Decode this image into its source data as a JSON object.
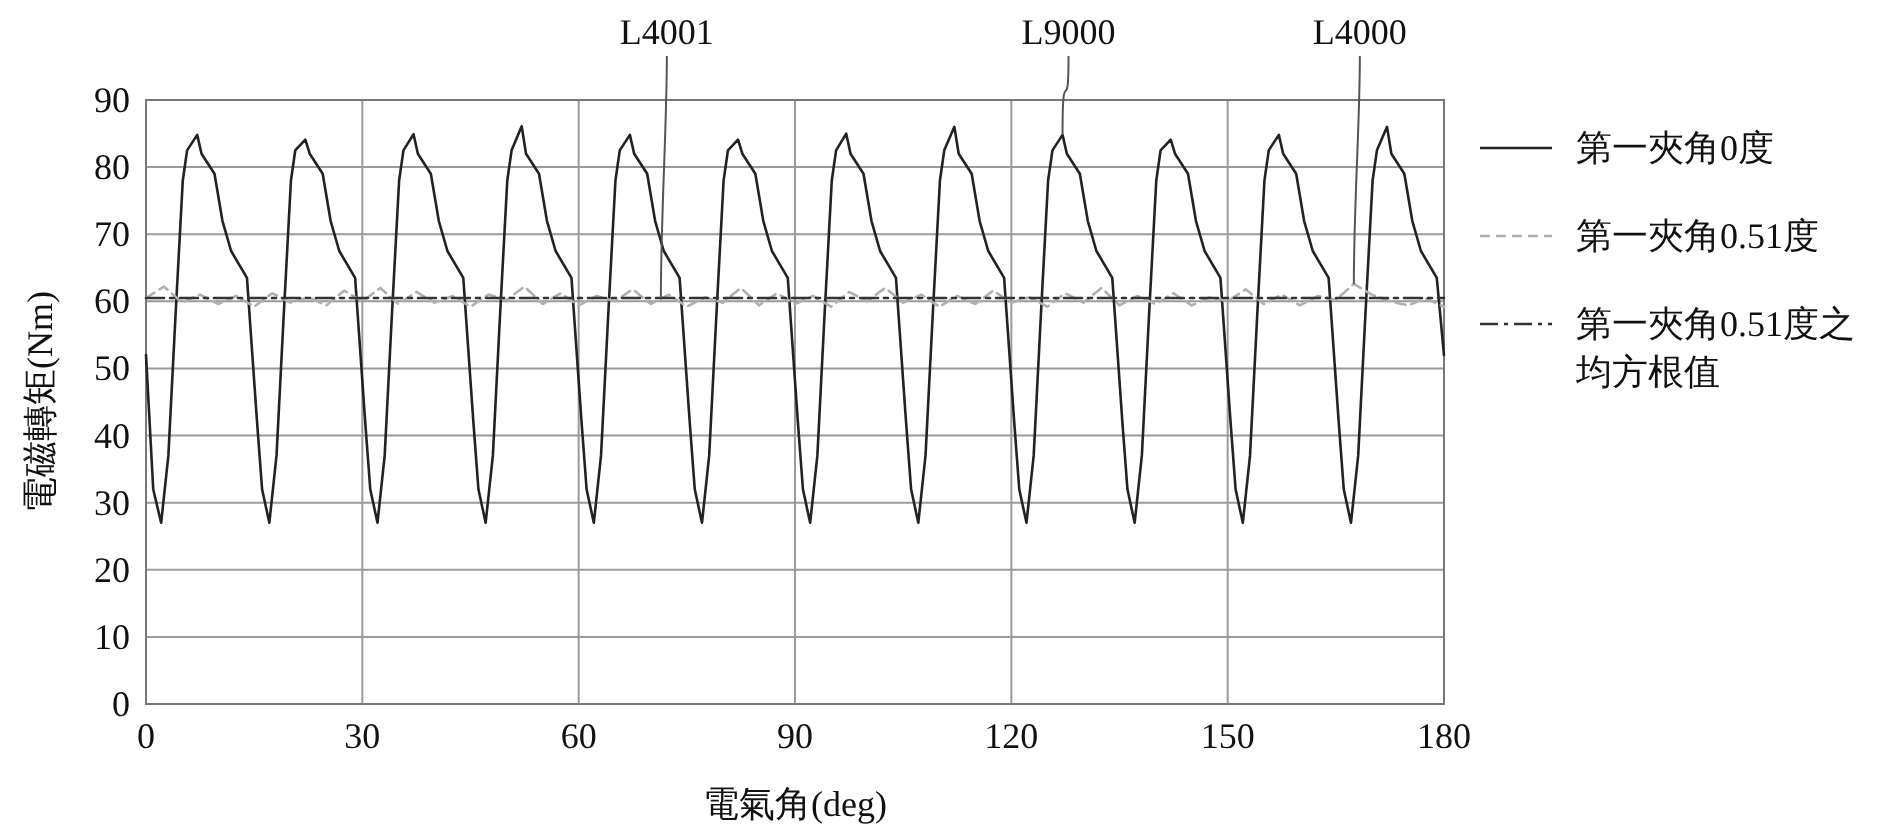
{
  "chart_data": {
    "type": "line",
    "xlabel": "電氣角(deg)",
    "ylabel": "電磁轉矩(Nm)",
    "xlim": [
      0,
      180
    ],
    "ylim": [
      0,
      90
    ],
    "xticks": [
      0,
      30,
      60,
      90,
      120,
      150,
      180
    ],
    "yticks": [
      0,
      10,
      20,
      30,
      40,
      50,
      60,
      70,
      80,
      90
    ],
    "grid": true,
    "legend": "right",
    "series": [
      {
        "name": "第一夾角0度",
        "color": "#222222",
        "line_style": "solid",
        "x": [
          0,
          1.0,
          2.1,
          3.1,
          4.1,
          5.1,
          5.7,
          7.1,
          7.7,
          9.5,
          10.6,
          11.8,
          14.0,
          15.4,
          16.1,
          17.1,
          18.1,
          19.1,
          20.1,
          20.7,
          22.1,
          22.7,
          24.5,
          25.6,
          26.8,
          29.0,
          30.4,
          31.1,
          32.1,
          33.1,
          34.1,
          35.1,
          35.7,
          37.1,
          37.7,
          39.5,
          40.6,
          41.8,
          44.0,
          45.4,
          46.1,
          47.1,
          48.1,
          49.1,
          50.1,
          50.7,
          52.1,
          52.7,
          54.5,
          55.6,
          56.8,
          59.0,
          60.4,
          61.1,
          62.1,
          63.1,
          64.1,
          65.1,
          65.7,
          67.1,
          67.7,
          69.5,
          70.6,
          71.8,
          74.0,
          75.4,
          76.1,
          77.1,
          78.1,
          79.1,
          80.1,
          80.7,
          82.1,
          82.7,
          84.5,
          85.6,
          86.8,
          89.0,
          90.4,
          91.1,
          92.1,
          93.1,
          94.1,
          95.1,
          95.7,
          97.1,
          97.7,
          99.5,
          100.6,
          101.8,
          104.0,
          105.4,
          106.1,
          107.1,
          108.1,
          109.1,
          110.1,
          110.7,
          112.1,
          112.7,
          114.5,
          115.6,
          116.8,
          119.0,
          120.4,
          121.1,
          122.1,
          123.1,
          124.1,
          125.1,
          125.7,
          127.1,
          127.7,
          129.5,
          130.6,
          131.8,
          134.0,
          135.4,
          136.1,
          137.1,
          138.1,
          139.1,
          140.1,
          140.7,
          142.1,
          142.7,
          144.5,
          145.6,
          146.8,
          149.0,
          150.4,
          151.1,
          152.1,
          153.1,
          154.1,
          155.1,
          155.7,
          157.1,
          157.7,
          159.5,
          160.6,
          161.8,
          164.0,
          165.4,
          166.1,
          167.1,
          168.1,
          169.1,
          170.1,
          170.7,
          172.1,
          172.7,
          174.5,
          175.6,
          176.8,
          179.0,
          180
        ],
        "values": [
          52,
          32,
          27,
          37,
          58,
          78,
          82.5,
          84.8,
          82,
          79,
          72,
          67.5,
          63.5,
          42,
          32,
          27,
          37,
          58,
          78,
          82.5,
          84.1,
          82,
          79,
          72,
          67.5,
          63.5,
          42,
          32,
          27,
          37,
          58,
          78,
          82.5,
          84.9,
          82,
          79,
          72,
          67.5,
          63.5,
          42,
          32,
          27,
          37,
          58,
          78,
          82.5,
          86.1,
          82,
          79,
          72,
          67.5,
          63.5,
          42,
          32,
          27,
          37,
          58,
          78,
          82.5,
          84.8,
          82,
          79,
          72,
          67.5,
          63.5,
          42,
          32,
          27,
          37,
          58,
          78,
          82.5,
          84.1,
          82,
          79,
          72,
          67.5,
          63.5,
          42,
          32,
          27,
          37,
          58,
          78,
          82.5,
          85,
          82,
          79,
          72,
          67.5,
          63.5,
          42,
          32,
          27,
          37,
          58,
          78,
          82.5,
          86,
          82,
          79,
          72,
          67.5,
          63.5,
          42,
          32,
          27,
          37,
          58,
          78,
          82.5,
          84.8,
          82,
          79,
          72,
          67.5,
          63.5,
          42,
          32,
          27,
          37,
          58,
          78,
          82.5,
          84.1,
          82,
          79,
          72,
          67.5,
          63.5,
          42,
          32,
          27,
          37,
          58,
          78,
          82.5,
          84.8,
          82,
          79,
          72,
          67.5,
          63.5,
          42,
          32,
          27,
          37,
          58,
          78,
          82.5,
          86,
          82,
          79,
          72,
          67.5,
          63.5,
          52
        ]
      },
      {
        "name": "第一夾角0.51度",
        "color": "#b0b0b0",
        "line_style": "dashed",
        "x": [
          0,
          2.5,
          5,
          7.5,
          10,
          12.5,
          15,
          17.5,
          20,
          22.5,
          25,
          27.5,
          30,
          32.5,
          35,
          37.5,
          40,
          42.5,
          45,
          47.5,
          50,
          52.5,
          55,
          57.5,
          60,
          62.5,
          65,
          67.5,
          70,
          72.5,
          75,
          77.5,
          80,
          82.5,
          85,
          87.5,
          90,
          92.5,
          95,
          97.5,
          100,
          102.5,
          105,
          107.5,
          110,
          112.5,
          115,
          117.5,
          120,
          122.5,
          125,
          127.5,
          130,
          132.5,
          135,
          137.5,
          140,
          142.5,
          145,
          147.5,
          150,
          152.5,
          155,
          157.5,
          160,
          162.5,
          165,
          167.5,
          170,
          172.5,
          175,
          177.5,
          180
        ],
        "values": [
          60.5,
          62.2,
          59.8,
          61.0,
          59.6,
          60.8,
          59.2,
          61.2,
          59.8,
          60.6,
          59.4,
          61.6,
          60.0,
          62.0,
          59.6,
          61.4,
          59.8,
          60.8,
          59.2,
          61.0,
          60.2,
          62.2,
          59.6,
          61.2,
          59.4,
          60.8,
          60.0,
          61.8,
          59.6,
          61.0,
          59.2,
          60.6,
          59.8,
          62.0,
          59.4,
          61.2,
          59.6,
          60.8,
          59.2,
          61.4,
          60.0,
          62.0,
          59.8,
          61.0,
          59.2,
          60.8,
          59.6,
          61.6,
          59.8,
          60.6,
          59.2,
          61.2,
          59.8,
          62.0,
          59.4,
          60.8,
          59.6,
          61.2,
          59.4,
          60.6,
          60.0,
          61.8,
          59.6,
          61.0,
          59.4,
          60.8,
          60.2,
          62.6,
          61.0,
          60.0,
          59.4,
          60.4,
          59.2
        ]
      },
      {
        "name": "第一夾角0.51度之均方根值",
        "color": "#333333",
        "line_style": "dashdot",
        "x": [
          0,
          180
        ],
        "values": [
          60.5,
          60.5
        ]
      }
    ],
    "annotations": [
      {
        "text": "L4001",
        "x": 71.4,
        "y": 60.5
      },
      {
        "text": "L9000",
        "x": 127.1,
        "y": 84.8
      },
      {
        "text": "L4000",
        "x": 167.5,
        "y": 62.6
      }
    ]
  }
}
